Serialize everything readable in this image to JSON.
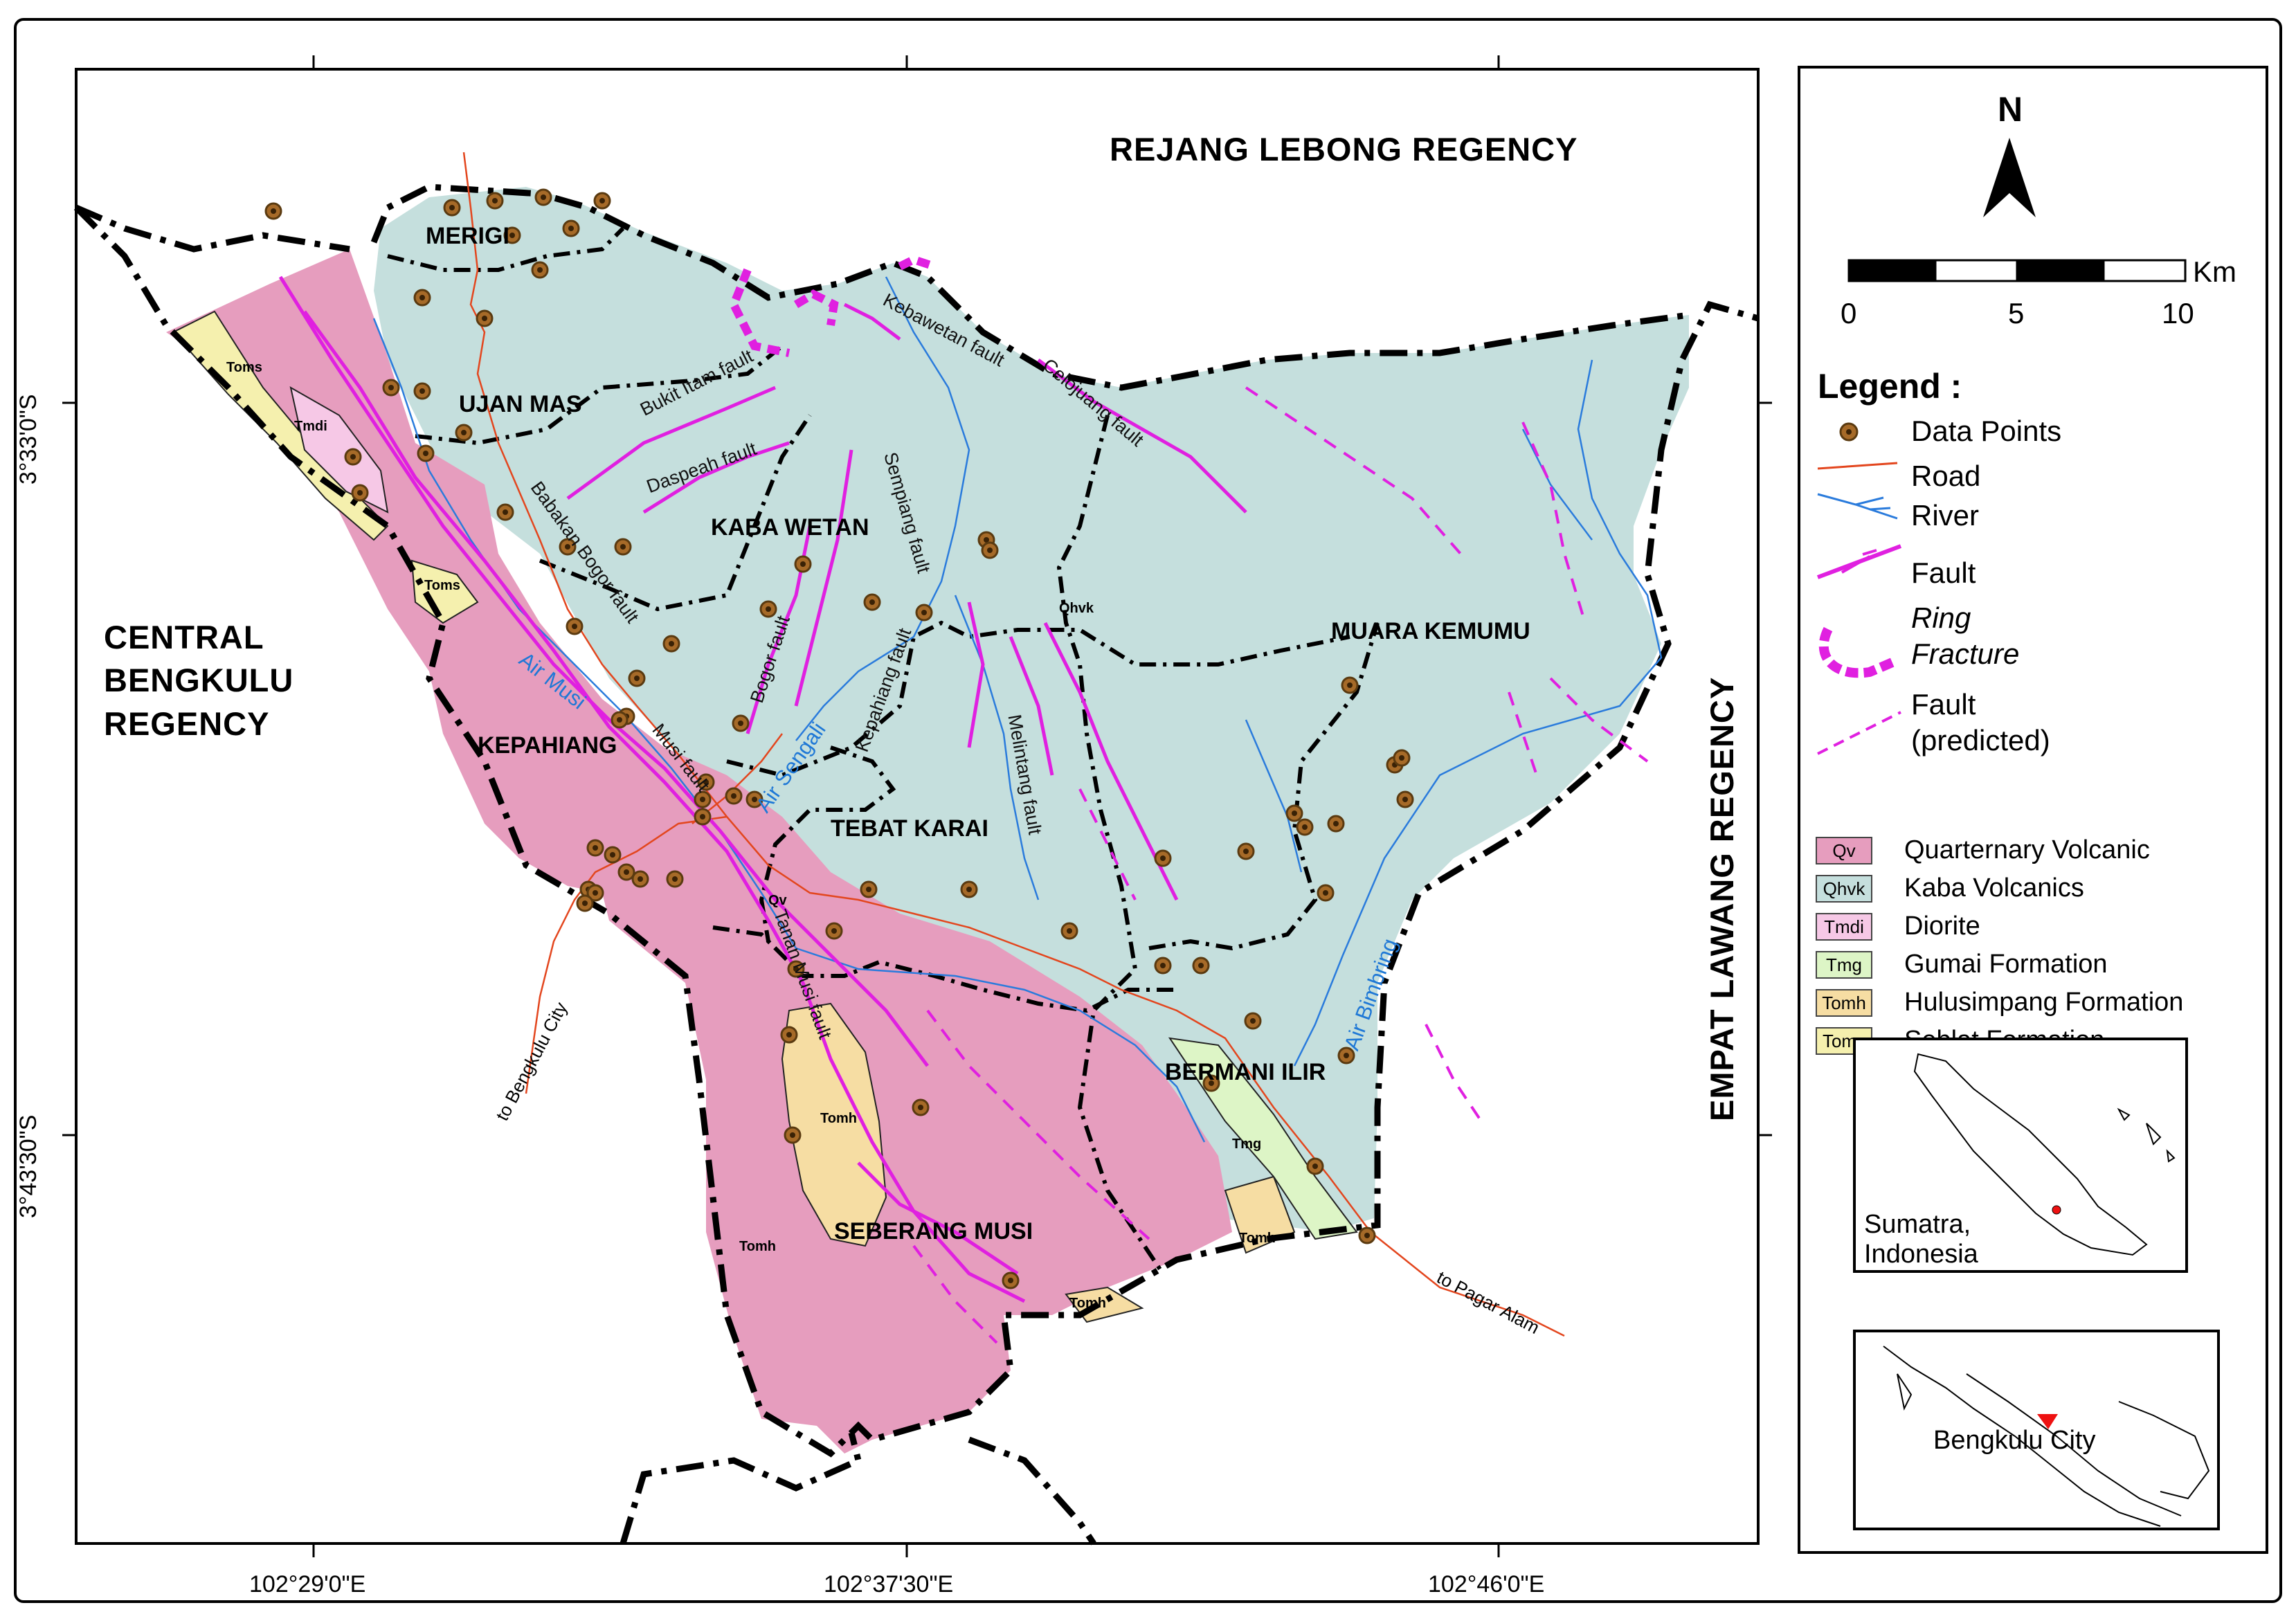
{
  "regions": {
    "north": "REJANG LEBONG REGENCY",
    "west_line1": "CENTRAL",
    "west_line2": "BENGKULU",
    "west_line3": "REGENCY",
    "east": "EMPAT LAWANG REGENCY"
  },
  "areas": {
    "merigi": "MERIGI",
    "ujan_mas": "UJAN MAS",
    "kaba_wetan": "KABA WETAN",
    "kepahiang": "KEPAHIANG",
    "tebat_karai": "TEBAT KARAI",
    "muara_kemumu": "MUARA KEMUMU",
    "bermani_ilir": "BERMANI ILIR",
    "seberang_musi": "SEBERANG MUSI"
  },
  "unit_labels": {
    "toms1": "Toms",
    "tmdi": "Tmdi",
    "toms2": "Toms",
    "qhvk": "Qhvk",
    "qv": "Qv",
    "tomh1": "Tomh",
    "tomh2": "Tomh",
    "tomh3": "Tomh",
    "tomh4": "Tomh",
    "tmg": "Tmg"
  },
  "faults": {
    "bukit_itam": "Bukit Itam fault",
    "dasperah": "Daspeah fault",
    "babakan_bogor": "Babakan Bogor fault",
    "bogor": "Bogor fault",
    "sempiang": "Sempiang fault",
    "kepahiang": "Kepahiang fault",
    "kebawetan": "Kebawetan fault",
    "celojuang": "Celojuang fault",
    "melintang": "Melintang fault",
    "musi": "Musi fault",
    "tanah_musi": "Tanan Musi fault"
  },
  "rivers": {
    "air_musi": "Air Musi",
    "air_sengali": "Air Sengali",
    "air_bimbring": "Air Bimbring"
  },
  "roads": {
    "bengkulu": "to Bengkulu City",
    "pagar_alam": "to Pagar Alam"
  },
  "coordinates": {
    "lat1": "3°33'0\"S",
    "lat2": "3°43'30\"S",
    "lon1": "102°29'0\"E",
    "lon2": "102°37'30\"E",
    "lon3": "102°46'0\"E"
  },
  "legend": {
    "north": "N",
    "scale_unit": "Km",
    "scale_ticks": [
      "0",
      "5",
      "10"
    ],
    "title": "Legend :",
    "data_points": "Data Points",
    "road": "Road",
    "river": "River",
    "fault": "Fault",
    "ring1": "Ring",
    "ring2": "Fracture",
    "pred1": "Fault",
    "pred2": "(predicted)",
    "units": [
      {
        "code": "Qv",
        "name": "Quarternary Volcanic",
        "color": "#e69dbe"
      },
      {
        "code": "Qhvk",
        "name": "Kaba Volcanics",
        "color": "#c5dfdd"
      },
      {
        "code": "Tmdi",
        "name": "Diorite",
        "color": "#f6c8e6"
      },
      {
        "code": "Tmg",
        "name": "Gumai Formation",
        "color": "#ddf5c6"
      },
      {
        "code": "Tomh",
        "name": "Hulusimpang Formation",
        "color": "#f6dda3"
      },
      {
        "code": "Toms",
        "name": "Seblat Formation",
        "color": "#f5f0ae"
      }
    ]
  },
  "insets": {
    "sumatra1": "Sumatra,",
    "sumatra2": "Indonesia",
    "bengkulu": "Bengkulu City"
  },
  "colors": {
    "fault": "#e020e0",
    "river": "#2a7bdc",
    "road": "#e3461e",
    "boundary": "#000000"
  }
}
